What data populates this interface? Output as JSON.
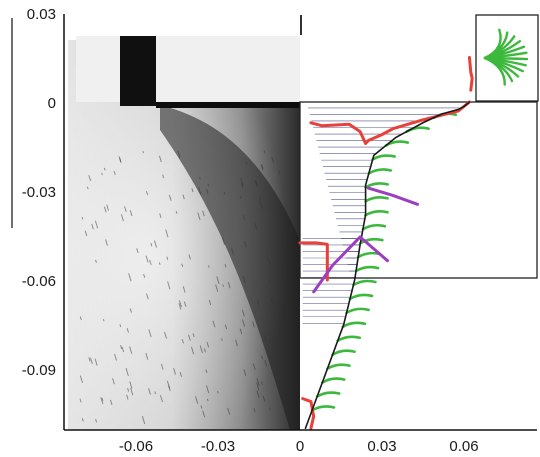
{
  "chart_data": {
    "type": "scatter",
    "title": "",
    "xlabel": "",
    "ylabel": "",
    "xlim": [
      -0.078,
      0.08
    ],
    "ylim": [
      -0.11,
      0.032
    ],
    "x_ticks": [
      "-0.06",
      "-0.03",
      "0",
      "0.03",
      "0.06"
    ],
    "x_tick_values": [
      -0.06,
      -0.03,
      0,
      0.03,
      0.06
    ],
    "y_ticks": [
      "0.03",
      "0",
      "-0.03",
      "-0.06",
      "-0.09"
    ],
    "y_tick_values": [
      0.03,
      0,
      -0.03,
      -0.06,
      -0.09
    ],
    "grid": false,
    "legend": "none",
    "background_image": "grayscale flow photograph covering the left half (x < 0) with a dark rectangular cut-out near the top",
    "series": [
      {
        "color": "#e8403a",
        "x": [
          0.004,
          0.008,
          0.018,
          0.022,
          0.024,
          0.025,
          0.03,
          0.034,
          0.045,
          0.058,
          0.062
        ],
        "y": [
          -0.007,
          -0.008,
          -0.0075,
          -0.01,
          -0.014,
          -0.013,
          -0.011,
          -0.009,
          -0.006,
          -0.003,
          0.0
        ]
      },
      {
        "color": "#e8403a",
        "x": [
          0.0,
          0.006,
          0.01,
          0.01
        ],
        "y": [
          -0.0475,
          -0.0475,
          -0.048,
          -0.06
        ]
      },
      {
        "color": "#e8403a",
        "x": [
          0.001,
          0.004,
          0.005,
          0.004
        ],
        "y": [
          -0.1,
          -0.101,
          -0.106,
          -0.11
        ]
      },
      {
        "color": "#e8403a",
        "x": [
          0.062,
          0.0625,
          0.063,
          0.0625
        ],
        "y": [
          0.015,
          0.01,
          0.008,
          0.004
        ]
      },
      {
        "color": "#1a1a1a",
        "x": [
          0.002,
          0.008,
          0.016,
          0.02,
          0.022,
          0.024,
          0.024,
          0.027,
          0.035,
          0.045,
          0.052,
          0.058,
          0.06,
          0.062
        ],
        "y": [
          -0.11,
          -0.095,
          -0.075,
          -0.06,
          -0.048,
          -0.038,
          -0.028,
          -0.018,
          -0.012,
          -0.007,
          -0.004,
          -0.0025,
          -0.0015,
          0.0
        ]
      },
      {
        "color": "#9b3fc0",
        "x": [
          0.025,
          0.034,
          0.043
        ],
        "y": [
          -0.029,
          -0.0315,
          -0.0345
        ]
      },
      {
        "color": "#9b3fc0",
        "x": [
          0.005,
          0.012,
          0.022,
          0.032
        ],
        "y": [
          -0.064,
          -0.055,
          -0.0455,
          -0.0535
        ]
      }
    ],
    "green_profile_samples": 22,
    "black_profile_samples": 26
  }
}
